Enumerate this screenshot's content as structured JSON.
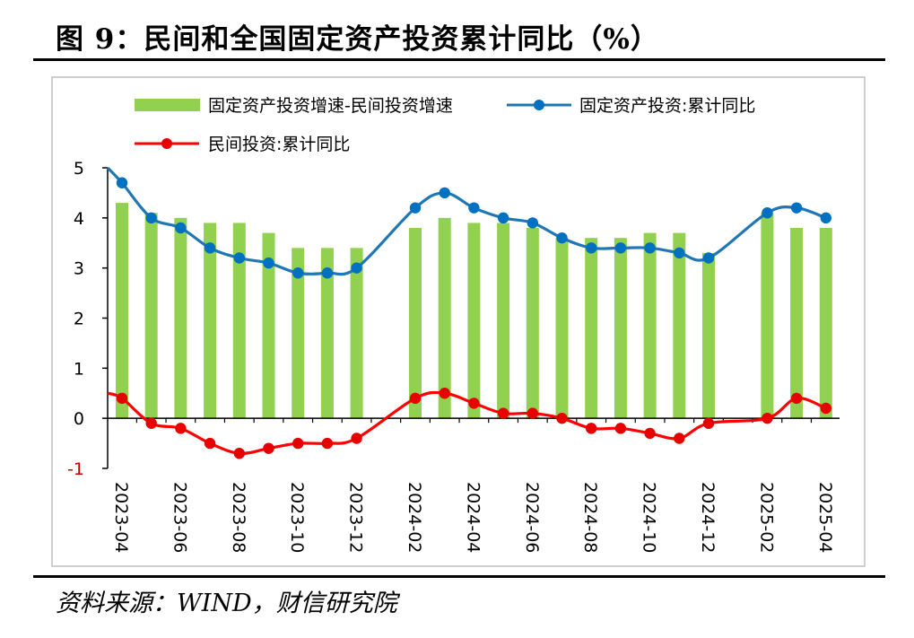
{
  "title": "图 9：民间和全国固定资产投资累计同比（%）",
  "source": "资料来源：WIND，财信研究院",
  "colors": {
    "bar": "#92D050",
    "total_line": "#1F77B4",
    "total_marker": "#0070C0",
    "private_line": "#FF0000",
    "private_marker": "#E60000",
    "axis": "#000000",
    "neg_tick": "#C00000"
  },
  "chart_data": {
    "type": "bar+line",
    "x_label_format": "every other month, rotated",
    "categories": [
      "2023-04",
      "2023-05",
      "2023-06",
      "2023-07",
      "2023-08",
      "2023-09",
      "2023-10",
      "2023-11",
      "2023-12",
      "2024-01",
      "2024-02",
      "2024-03",
      "2024-04",
      "2024-05",
      "2024-06",
      "2024-07",
      "2024-08",
      "2024-09",
      "2024-10",
      "2024-11",
      "2024-12",
      "2025-01",
      "2025-02",
      "2025-03",
      "2025-04"
    ],
    "x_tick_labels": [
      "2023-04",
      "2023-06",
      "2023-08",
      "2023-10",
      "2023-12",
      "2024-02",
      "2024-04",
      "2024-06",
      "2024-08",
      "2024-10",
      "2024-12",
      "2025-02",
      "2025-04"
    ],
    "ylim": [
      -1,
      5
    ],
    "y_ticks": [
      "-1",
      "0",
      "1",
      "2",
      "3",
      "4",
      "5"
    ],
    "legend_position": "top",
    "grid": false,
    "series": [
      {
        "name": "固定资产投资增速-民间投资增速",
        "kind": "bar",
        "values": [
          4.3,
          4.1,
          4.0,
          3.9,
          3.9,
          3.7,
          3.4,
          3.4,
          3.4,
          null,
          3.8,
          4.0,
          3.9,
          3.9,
          3.8,
          3.6,
          3.6,
          3.6,
          3.7,
          3.7,
          3.3,
          null,
          4.1,
          3.8,
          3.8
        ]
      },
      {
        "name": "固定资产投资:累计同比",
        "kind": "line",
        "lead_in": 5.0,
        "values": [
          4.7,
          4.0,
          3.8,
          3.4,
          3.2,
          3.1,
          2.9,
          2.9,
          3.0,
          null,
          4.2,
          4.5,
          4.2,
          4.0,
          3.9,
          3.6,
          3.4,
          3.4,
          3.4,
          3.3,
          3.2,
          null,
          4.1,
          4.2,
          4.0
        ]
      },
      {
        "name": "民间投资:累计同比",
        "kind": "line",
        "lead_in": 0.5,
        "values": [
          0.4,
          -0.1,
          -0.2,
          -0.5,
          -0.7,
          -0.6,
          -0.5,
          -0.5,
          -0.4,
          null,
          0.4,
          0.5,
          0.3,
          0.1,
          0.1,
          0.0,
          -0.2,
          -0.2,
          -0.3,
          -0.4,
          -0.1,
          null,
          0.0,
          0.4,
          0.2
        ]
      }
    ]
  }
}
